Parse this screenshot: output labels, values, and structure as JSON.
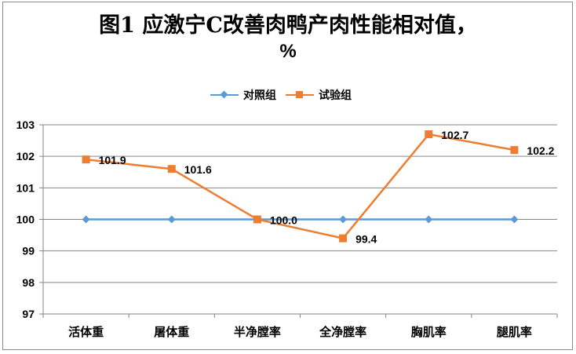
{
  "chart_data": {
    "type": "line",
    "title": "图1 应激宁C改善肉鸭产肉性能相对值，%",
    "title_lines": [
      "图1 应激宁C改善肉鸭产肉性能相对值，",
      "%"
    ],
    "xlabel": "",
    "ylabel": "",
    "categories": [
      "活体重",
      "屠体重",
      "半净膛率",
      "全净膛率",
      "胸肌率",
      "腿肌率"
    ],
    "series": [
      {
        "name": "对照组",
        "values": [
          100,
          100,
          100,
          100,
          100,
          100
        ],
        "color": "#5B9BD5",
        "marker": "diamond"
      },
      {
        "name": "试验组",
        "values": [
          101.9,
          101.6,
          100.0,
          99.4,
          102.7,
          102.2
        ],
        "color": "#ED7D31",
        "marker": "square"
      }
    ],
    "data_labels": [
      "101.9",
      "101.6",
      "100.0",
      "99.4",
      "102.7",
      "102.2"
    ],
    "yticks": [
      97,
      98,
      99,
      100,
      101,
      102,
      103
    ],
    "ylim": [
      97,
      103
    ],
    "grid": true,
    "legend_position": "top"
  },
  "legend": {
    "control": "对照组",
    "treatment": "试验组"
  }
}
